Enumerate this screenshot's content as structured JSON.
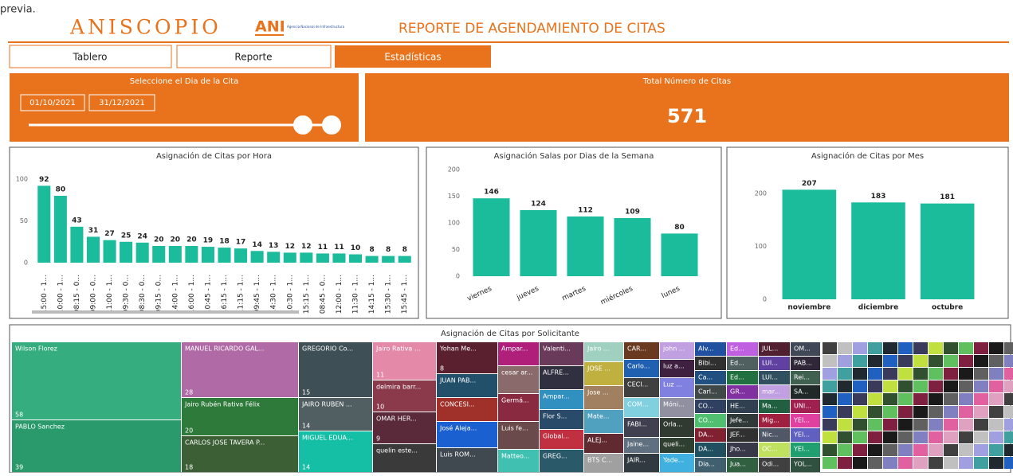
{
  "header": {
    "note": "previa.",
    "logo": "ANISCOPIO",
    "ani": "ANI",
    "ani_sub": "Agencia Nacional de Infraestructura",
    "title": "REPORTE DE AGENDAMIENTO DE CITAS"
  },
  "tabs": [
    "Tablero",
    "Reporte",
    "Estadísticas"
  ],
  "filter": {
    "title": "Seleccione el Dia de la Cita",
    "start": "01/10/2021",
    "end": "31/12/2021"
  },
  "kpi": {
    "title": "Total Número de Citas",
    "value": 571
  },
  "charts": [
    {
      "type": "bar",
      "title": "Asignación de Citas por Hora",
      "color": "#1abc9c",
      "categories": [
        "15:00 - 1...",
        "10:00 - 1...",
        "08:15 - 0...",
        "09:00 - 0...",
        "11:00 - 1...",
        "09:30 - 0...",
        "08:30 - 0...",
        "09:15 - 0...",
        "14:00 - 1...",
        "16:00 - 1...",
        "10:45 - 1...",
        "16:15 - 1...",
        "11:15 - 1...",
        "09:45 - 1...",
        "14:30 - 1...",
        "10:30 - 1...",
        "15:15 - 1...",
        "08:45 - 0...",
        "12:00 - 1...",
        "11:30 - 1...",
        "14:15 - 1...",
        "15:30 - 1...",
        "15:45 - 1..."
      ],
      "values": [
        92,
        80,
        43,
        31,
        27,
        25,
        24,
        20,
        20,
        20,
        19,
        18,
        17,
        14,
        13,
        12,
        12,
        11,
        11,
        10,
        8,
        8,
        8
      ],
      "ylim": [
        0,
        100
      ],
      "yticks": [
        0,
        50,
        100
      ]
    },
    {
      "type": "bar",
      "title": "Asignación Salas por Dias de la Semana",
      "color": "#1abc9c",
      "categories": [
        "viernes",
        "jueves",
        "martes",
        "miércoles",
        "lunes"
      ],
      "values": [
        146,
        124,
        112,
        109,
        80
      ],
      "ylim": [
        0,
        200
      ],
      "yticks": [
        0,
        50,
        100,
        150,
        200
      ]
    },
    {
      "type": "bar",
      "title": "Asignación de Citas por Mes",
      "color": "#1abc9c",
      "categories": [
        "noviembre",
        "diciembre",
        "octubre"
      ],
      "values": [
        207,
        183,
        181
      ],
      "ylim": [
        0,
        200
      ],
      "yticks": [
        0,
        100,
        200
      ]
    }
  ],
  "treemap": {
    "title": "Asignación de Citas por Solicitante",
    "tiles": [
      {
        "label": "Wilson Florez",
        "value": 58,
        "color": "#35ad7e"
      },
      {
        "label": "PABLO Sanchez",
        "value": 39,
        "color": "#2a9a6c"
      },
      {
        "label": "MANUEL RICARDO GAL...",
        "value": 28,
        "color": "#b06aa6"
      },
      {
        "label": "Jairo Rubén Rativa Félix",
        "value": 20,
        "color": "#2e7a3a"
      },
      {
        "label": "CARLOS JOSE TAVERA P...",
        "value": 18,
        "color": "#3c5f36"
      },
      {
        "label": "GREGORIO Co...",
        "value": 15,
        "color": "#3f4f56"
      },
      {
        "label": "JAIRO RUBEN ...",
        "value": 14,
        "color": "#515e62"
      },
      {
        "label": "MIGUEL EDUA...",
        "value": 14,
        "color": "#14bfa6"
      },
      {
        "label": "Jairo Rativa ...",
        "value": 11,
        "color": "#e48aa8"
      },
      {
        "label": "delmira barr...",
        "value": 10,
        "color": "#8a3a4a"
      },
      {
        "label": "OMAR HER...",
        "value": 9,
        "color": "#5a2a3a"
      },
      {
        "label": "quelin este...",
        "color": "#3a3a3a"
      },
      {
        "label": "Yohan Me...",
        "value": 8,
        "color": "#5a2030"
      },
      {
        "label": "JUAN PAB...",
        "color": "#22506a"
      },
      {
        "label": "CONCESI...",
        "color": "#a0302a"
      },
      {
        "label": "José Aleja...",
        "color": "#1a60d0"
      },
      {
        "label": "Luis ROM...",
        "color": "#404850"
      },
      {
        "label": "Ampar...",
        "color": "#b0207a"
      },
      {
        "label": "cesar ar...",
        "color": "#8a6a6a"
      },
      {
        "label": "Germá...",
        "color": "#8a2a40"
      },
      {
        "label": "Luis fe...",
        "color": "#6a4a4a"
      },
      {
        "label": "Matteo...",
        "color": "#40c0b0"
      },
      {
        "label": "Valenti...",
        "color": "#6a3a5a"
      },
      {
        "label": "ALFRE...",
        "color": "#303040"
      },
      {
        "label": "Ampar...",
        "color": "#3090c0"
      },
      {
        "label": "Flor S...",
        "color": "#2a4a6a"
      },
      {
        "label": "Global...",
        "color": "#c03040"
      },
      {
        "label": "GREG...",
        "color": "#2a5a6a"
      },
      {
        "label": "Jairo ...",
        "color": "#a0d0c0"
      },
      {
        "label": "JOSE ...",
        "color": "#c0b040"
      },
      {
        "label": "Jose ...",
        "color": "#a08060"
      },
      {
        "label": "Mate...",
        "color": "#50a0c0"
      },
      {
        "label": "ALEJ...",
        "color": "#602a30"
      },
      {
        "label": "BTS C...",
        "color": "#a0a0a0"
      },
      {
        "label": "CAR...",
        "color": "#6a3a20"
      },
      {
        "label": "Carlo...",
        "color": "#2060b0"
      },
      {
        "label": "CECI...",
        "color": "#404040"
      },
      {
        "label": "COM...",
        "color": "#80d0e0"
      },
      {
        "label": "FABI...",
        "color": "#404050"
      },
      {
        "label": "Jaine...",
        "color": "#607080"
      },
      {
        "label": "JAIR...",
        "color": "#303a40"
      },
      {
        "label": "john ...",
        "color": "#c0a0e0"
      },
      {
        "label": "luz a...",
        "color": "#402040"
      },
      {
        "label": "Luz ...",
        "color": "#8080e0"
      },
      {
        "label": "Móni...",
        "color": "#9090a0"
      },
      {
        "label": "Orla...",
        "color": "#303a30"
      },
      {
        "label": "queli...",
        "color": "#304030"
      },
      {
        "label": "Yade...",
        "color": "#40b0e0"
      },
      {
        "label": "Alv...",
        "color": "#2050a0"
      },
      {
        "label": "Bibi...",
        "color": "#303030"
      },
      {
        "label": "Ca...",
        "color": "#205080"
      },
      {
        "label": "Carl...",
        "color": "#404848"
      },
      {
        "label": "CO...",
        "color": "#304060"
      },
      {
        "label": "CO...",
        "color": "#50c070"
      },
      {
        "label": "DA...",
        "color": "#802030"
      },
      {
        "label": "DA...",
        "color": "#205060"
      },
      {
        "label": "Dia...",
        "color": "#406070"
      },
      {
        "label": "Ed...",
        "color": "#c060e0"
      },
      {
        "label": "Ed...",
        "color": "#506060"
      },
      {
        "label": "Ed...",
        "color": "#207040"
      },
      {
        "label": "GR...",
        "color": "#8030a0"
      },
      {
        "label": "HE...",
        "color": "#304050"
      },
      {
        "label": "Jefe...",
        "color": "#303838"
      },
      {
        "label": "JEF...",
        "color": "#303030"
      },
      {
        "label": "Jho...",
        "color": "#383848"
      },
      {
        "label": "Jua...",
        "color": "#306040"
      },
      {
        "label": "JUL...",
        "color": "#502030"
      },
      {
        "label": "LUI...",
        "color": "#6040a0"
      },
      {
        "label": "LUI...",
        "color": "#305060"
      },
      {
        "label": "mar...",
        "color": "#c0a0e0"
      },
      {
        "label": "Ma...",
        "color": "#206040"
      },
      {
        "label": "Mig...",
        "color": "#a02040"
      },
      {
        "label": "Nic...",
        "color": "#505868"
      },
      {
        "label": "OC...",
        "color": "#c0e060"
      },
      {
        "label": "Odi...",
        "color": "#404040"
      },
      {
        "label": "OM...",
        "color": "#404858"
      },
      {
        "label": "PAB...",
        "color": "#302838"
      },
      {
        "label": "Rei...",
        "color": "#406050"
      },
      {
        "label": "SA...",
        "color": "#202828"
      },
      {
        "label": "UNI...",
        "color": "#a02050"
      },
      {
        "label": "YEI...",
        "color": "#e040a0"
      },
      {
        "label": "YEI...",
        "color": "#6060c0"
      },
      {
        "label": "YEI...",
        "color": "#20a070"
      },
      {
        "label": "YOL...",
        "color": "#305040"
      }
    ]
  }
}
